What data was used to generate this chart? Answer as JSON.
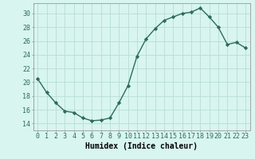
{
  "x": [
    0,
    1,
    2,
    3,
    4,
    5,
    6,
    7,
    8,
    9,
    10,
    11,
    12,
    13,
    14,
    15,
    16,
    17,
    18,
    19,
    20,
    21,
    22,
    23
  ],
  "y": [
    20.5,
    18.5,
    17.0,
    15.8,
    15.6,
    14.8,
    14.4,
    14.5,
    14.8,
    17.0,
    19.5,
    23.8,
    26.3,
    27.8,
    29.0,
    29.5,
    30.0,
    30.2,
    30.8,
    29.5,
    28.0,
    25.5,
    25.8,
    25.0
  ],
  "line_color": "#2d6b5e",
  "marker": "D",
  "marker_size": 2.2,
  "bg_color": "#d8f5f0",
  "grid_color": "#b8ddd6",
  "xlabel": "Humidex (Indice chaleur)",
  "xlabel_fontsize": 7,
  "ylim": [
    13,
    31.5
  ],
  "xlim": [
    -0.5,
    23.5
  ],
  "yticks": [
    14,
    16,
    18,
    20,
    22,
    24,
    26,
    28,
    30
  ],
  "xticks": [
    0,
    1,
    2,
    3,
    4,
    5,
    6,
    7,
    8,
    9,
    10,
    11,
    12,
    13,
    14,
    15,
    16,
    17,
    18,
    19,
    20,
    21,
    22,
    23
  ],
  "tick_fontsize": 6,
  "line_width": 1.0
}
